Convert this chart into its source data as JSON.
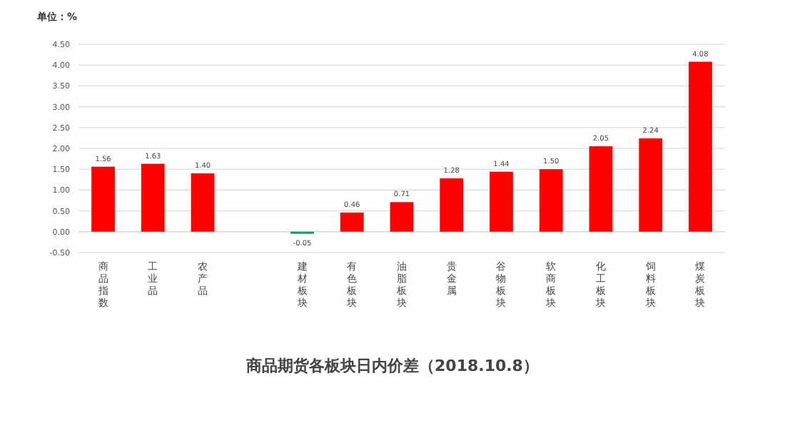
{
  "chart_data": {
    "type": "bar",
    "title": "商品期货各板块日内价差（2018.10.8）",
    "ylabel": "单位：%",
    "categories": [
      "商品指数",
      "工业品",
      "农产品",
      null,
      "建材板块",
      "有色板块",
      "油脂板块",
      "贵金属",
      "谷物板块",
      "软商板块",
      "化工板块",
      "饲料板块",
      "煤炭板块"
    ],
    "values": [
      1.56,
      1.63,
      1.4,
      null,
      -0.05,
      0.46,
      0.71,
      1.28,
      1.44,
      1.5,
      2.05,
      2.24,
      4.08
    ],
    "value_labels": [
      "1.56",
      "1.63",
      "1.40",
      null,
      "-0.05",
      "0.46",
      "0.71",
      "1.28",
      "1.44",
      "1.50",
      "2.05",
      "2.24",
      "4.08"
    ],
    "colors": [
      "#ff0000",
      "#ff0000",
      "#ff0000",
      null,
      "#00a651",
      "#ff0000",
      "#ff0000",
      "#ff0000",
      "#ff0000",
      "#ff0000",
      "#ff0000",
      "#ff0000",
      "#ff0000"
    ],
    "ylim": [
      -0.5,
      4.5
    ],
    "yticks": [
      {
        "value": -0.5,
        "label": "-0.50"
      },
      {
        "value": 0,
        "label": "0.00"
      },
      {
        "value": 0.5,
        "label": "0.50"
      },
      {
        "value": 1,
        "label": "1.00"
      },
      {
        "value": 1.5,
        "label": "1.50"
      },
      {
        "value": 2,
        "label": "2.00"
      },
      {
        "value": 2.5,
        "label": "2.50"
      },
      {
        "value": 3,
        "label": "3.00"
      },
      {
        "value": 3.5,
        "label": "3.50"
      },
      {
        "value": 4,
        "label": "4.00"
      },
      {
        "value": 4.5,
        "label": "4.50"
      }
    ],
    "grid": "y"
  }
}
